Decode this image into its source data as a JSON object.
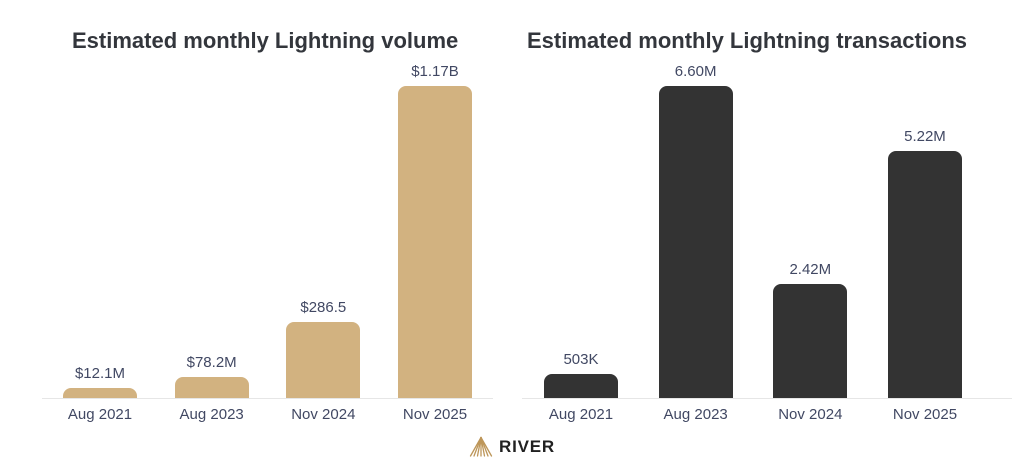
{
  "colors": {
    "axis": "#e6e6e6",
    "label": "#414863",
    "title": "#33363c",
    "logo_gold": "#bd9659",
    "brand_text": "#212121",
    "background": "#ffffff",
    "volume_bar": "#d2b280",
    "transactions_bar": "#333333"
  },
  "chart_data": [
    {
      "type": "bar",
      "title": "Estimated monthly Lightning volume",
      "categories": [
        "Aug 2021",
        "Aug 2023",
        "Nov 2024",
        "Nov 2025"
      ],
      "values": [
        12.1,
        78.2,
        286.5,
        1170
      ],
      "value_labels": [
        "$12.1M",
        "$78.2M",
        "$286.5",
        "$1.17B"
      ],
      "bar_color": "#d2b280",
      "xlabel": "",
      "ylabel": "",
      "ylim": [
        0,
        1170
      ],
      "grid": false,
      "legend": "none"
    },
    {
      "type": "bar",
      "title": "Estimated monthly Lightning transactions",
      "categories": [
        "Aug 2021",
        "Aug 2023",
        "Nov 2024",
        "Nov 2025"
      ],
      "values": [
        503000,
        6600000,
        2420000,
        5220000
      ],
      "value_labels": [
        "503K",
        "6.60M",
        "2.42M",
        "5.22M"
      ],
      "bar_color": "#333333",
      "xlabel": "",
      "ylabel": "",
      "ylim": [
        0,
        6600000
      ],
      "grid": false,
      "legend": "none"
    }
  ],
  "footer": {
    "brand": "RIVER",
    "logo_icon": "river-mountain-icon"
  }
}
